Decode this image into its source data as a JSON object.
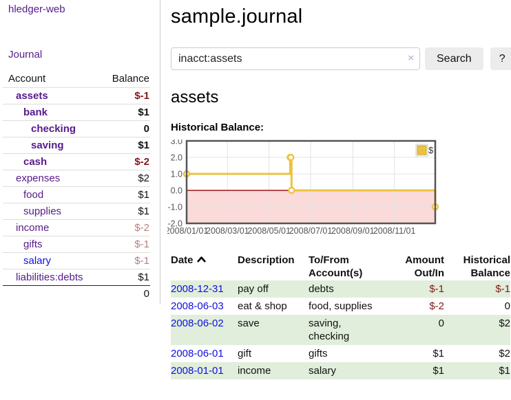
{
  "app": {
    "title": "hledger-web"
  },
  "colors": {
    "purple": "#551a8b",
    "link_blue": "#0f0fdf",
    "negative": "#861717",
    "negative_muted": "#b97d7d",
    "stripe_green": "#e0eedb",
    "button_bg": "#ececec"
  },
  "sidebar": {
    "journal_label": "Journal",
    "accounts": {
      "header_account": "Account",
      "header_balance": "Balance",
      "rows": [
        {
          "name": "assets",
          "balance": "$-1"
        },
        {
          "name": "bank",
          "balance": "$1"
        },
        {
          "name": "checking",
          "balance": "0"
        },
        {
          "name": "saving",
          "balance": "$1"
        },
        {
          "name": "cash",
          "balance": "$-2"
        },
        {
          "name": "expenses",
          "balance": "$2"
        },
        {
          "name": "food",
          "balance": "$1"
        },
        {
          "name": "supplies",
          "balance": "$1"
        },
        {
          "name": "income",
          "balance": "$-2"
        },
        {
          "name": "gifts",
          "balance": "$-1"
        },
        {
          "name": "salary",
          "balance": "$-1"
        },
        {
          "name": "liabilities:debts",
          "balance": "$1"
        }
      ],
      "total": "0"
    }
  },
  "main": {
    "title": "sample.journal",
    "search": {
      "value": "inacct:assets",
      "clear_icon": "×",
      "button_label": "Search",
      "help_label": "?"
    },
    "account_heading": "assets",
    "chart_label": "Historical Balance:"
  },
  "chart_data": {
    "type": "line",
    "title": "Historical Balance",
    "step": true,
    "series": [
      {
        "name": "$",
        "points": [
          {
            "date": "2008/01/01",
            "value": 1
          },
          {
            "date": "2008/06/01",
            "value": 2
          },
          {
            "date": "2008/06/02",
            "value": 2
          },
          {
            "date": "2008/06/03",
            "value": 0
          },
          {
            "date": "2008/12/31",
            "value": -1
          }
        ]
      }
    ],
    "x_range": [
      "2008/01/01",
      "2008/12/31"
    ],
    "ylim": [
      -2,
      3
    ],
    "y_ticks": [
      "3.0",
      "2.0",
      "1.0",
      "0.0",
      "-1.0",
      "-2.0"
    ],
    "x_ticks": [
      "2008/01/01",
      "2008/03/01",
      "2008/05/01",
      "2008/07/01",
      "2008/09/01",
      "2008/11/01"
    ],
    "legend": {
      "position": "top-right",
      "label": "$"
    },
    "grid": true,
    "series_color": "#edc240",
    "negative_region_fill": "#fbdada",
    "zero_line_color": "#a01313",
    "border_color": "#545454",
    "grid_color": "#e3e3e3",
    "tick_color": "#545454"
  },
  "register": {
    "headers": {
      "date": "Date",
      "description": "Description",
      "accounts_l1": "To/From",
      "accounts_l2": "Account(s)",
      "amount_l1": "Amount",
      "amount_l2": "Out/In",
      "balance_l1": "Historical",
      "balance_l2": "Balance"
    },
    "rows": [
      {
        "date": "2008-12-31",
        "description": "pay off",
        "accounts": "debts",
        "amount": "$-1",
        "balance": "$-1"
      },
      {
        "date": "2008-06-03",
        "description": "eat & shop",
        "accounts": "food, supplies",
        "amount": "$-2",
        "balance": "0"
      },
      {
        "date": "2008-06-02",
        "description": "save",
        "accounts": "saving, checking",
        "amount": "0",
        "balance": "$2"
      },
      {
        "date": "2008-06-01",
        "description": "gift",
        "accounts": "gifts",
        "amount": "$1",
        "balance": "$2"
      },
      {
        "date": "2008-01-01",
        "description": "income",
        "accounts": "salary",
        "amount": "$1",
        "balance": "$1"
      }
    ]
  }
}
